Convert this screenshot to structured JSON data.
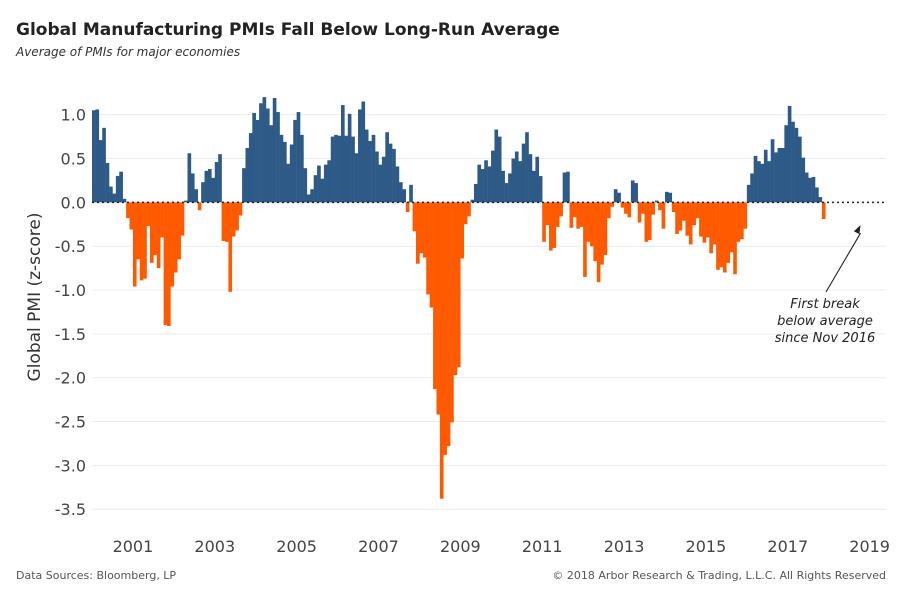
{
  "header": {
    "title": "Global Manufacturing PMIs Fall Below Long-Run Average",
    "subtitle": "Average of PMIs for major economies"
  },
  "footer": {
    "sources": "Data Sources: Bloomberg, LP",
    "copyright": "© 2018 Arbor Research & Trading, L.L.C. All Rights Reserved"
  },
  "chart_data": {
    "type": "bar",
    "title": "Global Manufacturing PMIs Fall Below Long-Run Average",
    "subtitle": "Average of PMIs for major economies",
    "xlabel": "",
    "ylabel": "Global PMI (z-score)",
    "ylim": [
      -3.6,
      1.35
    ],
    "yticks": [
      1.0,
      0.5,
      0.0,
      -0.5,
      -1.0,
      -1.5,
      -2.0,
      -2.5,
      -3.0,
      -3.5
    ],
    "ytick_labels": [
      "1.0",
      "0.5",
      "0.0",
      "-0.5",
      "-1.0",
      "-1.5",
      "-2.0",
      "-2.5",
      "-3.0",
      "-3.5"
    ],
    "xlim": [
      2000.0,
      2019.4
    ],
    "xticks": [
      2001,
      2003,
      2005,
      2007,
      2009,
      2011,
      2013,
      2015,
      2017,
      2019
    ],
    "xtick_labels": [
      "2001",
      "2003",
      "2005",
      "2007",
      "2009",
      "2011",
      "2013",
      "2015",
      "2017",
      "2019"
    ],
    "start": "2000-01",
    "frequency": "monthly",
    "grid": true,
    "baseline": {
      "value": 0.0,
      "style": "dotted"
    },
    "colors": {
      "positive": "#2e5a87",
      "negative": "#ff5a00"
    },
    "values": [
      1.05,
      1.06,
      0.71,
      0.85,
      0.45,
      0.18,
      0.1,
      0.3,
      0.35,
      0.04,
      -0.18,
      -0.31,
      -0.96,
      -0.65,
      -0.89,
      -0.87,
      -0.27,
      -0.69,
      -0.6,
      -0.75,
      -0.4,
      -1.4,
      -1.41,
      -0.96,
      -0.8,
      -0.65,
      -0.38,
      0.02,
      0.56,
      0.33,
      0.15,
      -0.09,
      0.23,
      0.36,
      0.38,
      0.28,
      0.46,
      0.55,
      -0.44,
      -0.45,
      -1.02,
      -0.39,
      -0.32,
      -0.15,
      0.39,
      0.62,
      0.79,
      1.02,
      0.94,
      1.13,
      1.2,
      1.07,
      0.88,
      1.19,
      1.03,
      0.77,
      0.69,
      0.44,
      0.66,
      0.94,
      1.03,
      0.77,
      0.39,
      0.09,
      0.15,
      0.31,
      0.42,
      0.27,
      0.43,
      0.48,
      0.75,
      0.77,
      0.76,
      1.11,
      0.76,
      1.01,
      0.75,
      0.56,
      1.06,
      1.15,
      0.83,
      0.7,
      0.77,
      0.58,
      0.43,
      0.52,
      0.8,
      0.67,
      0.61,
      0.41,
      0.23,
      0.15,
      -0.11,
      0.2,
      -0.33,
      -0.7,
      -0.58,
      -0.63,
      -1.05,
      -1.2,
      -2.13,
      -2.42,
      -3.38,
      -2.88,
      -2.78,
      -2.51,
      -1.97,
      -1.88,
      -0.64,
      -0.25,
      -0.16,
      0.03,
      0.21,
      0.43,
      0.38,
      0.48,
      0.41,
      0.59,
      0.83,
      0.75,
      0.36,
      0.22,
      0.33,
      0.5,
      0.58,
      0.47,
      0.67,
      0.8,
      0.55,
      0.36,
      0.52,
      0.3,
      -0.45,
      -0.26,
      -0.55,
      -0.52,
      -0.28,
      -0.16,
      0.34,
      0.35,
      -0.29,
      -0.17,
      -0.3,
      -0.28,
      -0.85,
      -0.45,
      -0.5,
      -0.67,
      -0.91,
      -0.71,
      -0.6,
      -0.18,
      -0.05,
      0.15,
      0.11,
      -0.06,
      -0.13,
      -0.17,
      0.25,
      0.22,
      -0.23,
      -0.13,
      -0.45,
      -0.43,
      -0.14,
      0.02,
      -0.09,
      -0.3,
      0.12,
      0.11,
      -0.11,
      -0.36,
      -0.32,
      -0.21,
      -0.38,
      -0.48,
      -0.26,
      -0.18,
      -0.39,
      -0.46,
      -0.4,
      -0.58,
      -0.48,
      -0.77,
      -0.74,
      -0.8,
      -0.69,
      -0.57,
      -0.82,
      -0.45,
      -0.42,
      -0.3,
      0.2,
      0.33,
      0.53,
      0.47,
      0.44,
      0.6,
      0.47,
      0.72,
      0.57,
      0.62,
      0.62,
      0.88,
      1.1,
      0.92,
      0.85,
      0.75,
      0.51,
      0.34,
      0.28,
      0.29,
      0.17,
      0.06,
      -0.19
    ],
    "annotations": [
      {
        "text_lines": [
          "First break",
          "below average",
          "since Nov 2016"
        ],
        "points_to": "2018-11"
      }
    ]
  }
}
